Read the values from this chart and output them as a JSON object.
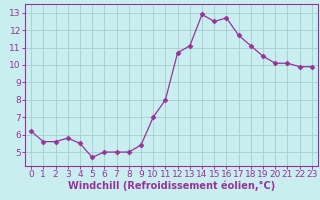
{
  "x": [
    0,
    1,
    2,
    3,
    4,
    5,
    6,
    7,
    8,
    9,
    10,
    11,
    12,
    13,
    14,
    15,
    16,
    17,
    18,
    19,
    20,
    21,
    22,
    23
  ],
  "y": [
    6.2,
    5.6,
    5.6,
    5.8,
    5.5,
    4.7,
    5.0,
    5.0,
    5.0,
    5.4,
    7.0,
    8.0,
    10.7,
    11.1,
    12.9,
    12.5,
    12.7,
    11.7,
    11.1,
    10.5,
    10.1,
    10.1,
    9.9,
    9.9
  ],
  "line_color": "#993399",
  "marker": "D",
  "marker_size": 2.5,
  "bg_color": "#c8eef0",
  "grid_color": "#aacccc",
  "xlabel": "Windchill (Refroidissement éolien,°C)",
  "xlim": [
    -0.5,
    23.5
  ],
  "ylim": [
    4.2,
    13.5
  ],
  "yticks": [
    5,
    6,
    7,
    8,
    9,
    10,
    11,
    12,
    13
  ],
  "xticks": [
    0,
    1,
    2,
    3,
    4,
    5,
    6,
    7,
    8,
    9,
    10,
    11,
    12,
    13,
    14,
    15,
    16,
    17,
    18,
    19,
    20,
    21,
    22,
    23
  ],
  "tick_color": "#993399",
  "label_color": "#993399",
  "xlabel_fontsize": 7.0,
  "tick_fontsize": 6.5
}
